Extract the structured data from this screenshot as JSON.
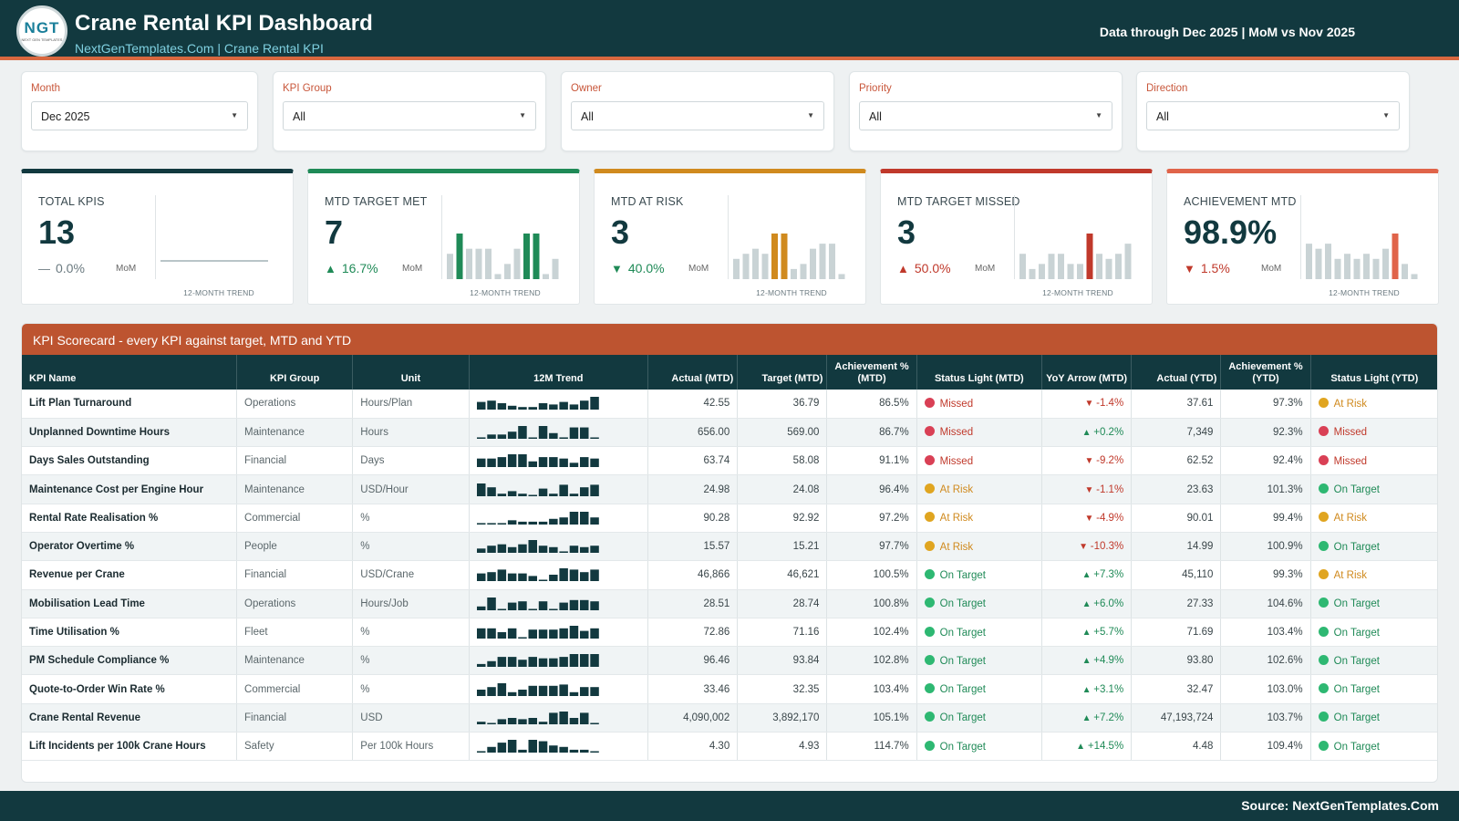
{
  "header": {
    "logo_text": "NGT",
    "logo_subtext": "NEXT GEN TEMPLATES",
    "title": "Crane Rental KPI Dashboard",
    "subtitle": "NextGenTemplates.Com | Crane Rental KPI",
    "period_note": "Data through Dec 2025 | MoM vs Nov 2025"
  },
  "filters": [
    {
      "label": "Month",
      "value": "Dec 2025"
    },
    {
      "label": "KPI Group",
      "value": "All"
    },
    {
      "label": "Owner",
      "value": "All"
    },
    {
      "label": "Priority",
      "value": "All"
    },
    {
      "label": "Direction",
      "value": "All"
    }
  ],
  "kpis": [
    {
      "label": "TOTAL KPIS",
      "value": "13",
      "change": "0.0%",
      "change_dir": "flat",
      "change_color": "#6b7a80",
      "mom": "MoM",
      "accent": "#12393f",
      "highlight": "#12393f",
      "trend_caption": "12-MONTH TREND",
      "trend": [
        13,
        13,
        13,
        13,
        13,
        13,
        13,
        13,
        13,
        13,
        13,
        13
      ],
      "highlight_idx": [],
      "is_line": true
    },
    {
      "label": "MTD TARGET MET",
      "value": "7",
      "change": "16.7%",
      "change_dir": "up",
      "change_color": "#1f8a57",
      "mom": "MoM",
      "accent": "#1f8a57",
      "highlight": "#1f8a57",
      "trend_caption": "12-MONTH TREND",
      "trend": [
        5,
        9,
        6,
        6,
        6,
        1,
        3,
        6,
        9,
        9,
        1,
        4
      ],
      "highlight_idx": [
        1,
        8,
        9
      ]
    },
    {
      "label": "MTD AT RISK",
      "value": "3",
      "change": "40.0%",
      "change_dir": "down",
      "change_color": "#1f8a57",
      "mom": "MoM",
      "accent": "#d08a1e",
      "highlight": "#d08a1e",
      "trend_caption": "12-MONTH TREND",
      "trend": [
        4,
        5,
        6,
        5,
        9,
        9,
        2,
        3,
        6,
        7,
        7,
        1
      ],
      "highlight_idx": [
        4,
        5
      ]
    },
    {
      "label": "MTD TARGET MISSED",
      "value": "3",
      "change": "50.0%",
      "change_dir": "up",
      "change_color": "#c0392b",
      "mom": "MoM",
      "accent": "#c0392b",
      "highlight": "#c0392b",
      "trend_caption": "12-MONTH TREND",
      "trend": [
        5,
        2,
        3,
        5,
        5,
        3,
        3,
        9,
        5,
        4,
        5,
        7
      ],
      "highlight_idx": [
        7
      ]
    },
    {
      "label": "ACHIEVEMENT MTD",
      "value": "98.9%",
      "change": "1.5%",
      "change_dir": "down",
      "change_color": "#c0392b",
      "mom": "MoM",
      "accent": "#e0644a",
      "highlight": "#e0644a",
      "trend_caption": "12-MONTH TREND",
      "trend": [
        7,
        6,
        7,
        4,
        5,
        4,
        5,
        4,
        6,
        9,
        3,
        1
      ],
      "highlight_idx": [
        9
      ]
    }
  ],
  "scorecard": {
    "title": "KPI Scorecard - every KPI against target, MTD and YTD",
    "columns": [
      "KPI Name",
      "KPI Group",
      "Unit",
      "12M Trend",
      "Actual (MTD)",
      "Target (MTD)",
      "Achievement % (MTD)",
      "Status Light (MTD)",
      "YoY Arrow (MTD)",
      "Actual (YTD)",
      "Achievement % (YTD)",
      "Status Light (YTD)"
    ],
    "rows": [
      {
        "name": "Lift Plan Turnaround",
        "group": "Operations",
        "unit": "Hours/Plan",
        "trend": [
          6,
          7,
          5,
          3,
          2,
          2,
          5,
          4,
          6,
          4,
          7,
          10
        ],
        "actual_mtd": "42.55",
        "target_mtd": "36.79",
        "ach_mtd": "86.5%",
        "status_mtd": "Missed",
        "yoy_dir": "down",
        "yoy": "-1.4%",
        "actual_ytd": "37.61",
        "ach_ytd": "97.3%",
        "status_ytd": "At Risk"
      },
      {
        "name": "Unplanned Downtime Hours",
        "group": "Maintenance",
        "unit": "Hours",
        "trend": [
          1,
          3,
          3,
          5,
          9,
          0,
          9,
          4,
          1,
          8,
          8,
          0
        ],
        "actual_mtd": "656.00",
        "target_mtd": "569.00",
        "ach_mtd": "86.7%",
        "status_mtd": "Missed",
        "yoy_dir": "up",
        "yoy": "+0.2%",
        "actual_ytd": "7,349",
        "ach_ytd": "92.3%",
        "status_ytd": "Missed"
      },
      {
        "name": "Days Sales Outstanding",
        "group": "Financial",
        "unit": "Days",
        "trend": [
          6,
          6,
          7,
          9,
          9,
          4,
          7,
          7,
          6,
          3,
          7,
          6
        ],
        "actual_mtd": "63.74",
        "target_mtd": "58.08",
        "ach_mtd": "91.1%",
        "status_mtd": "Missed",
        "yoy_dir": "down",
        "yoy": "-9.2%",
        "actual_ytd": "62.52",
        "ach_ytd": "92.4%",
        "status_ytd": "Missed"
      },
      {
        "name": "Maintenance Cost per Engine Hour",
        "group": "Maintenance",
        "unit": "USD/Hour",
        "trend": [
          10,
          7,
          2,
          4,
          2,
          1,
          6,
          2,
          9,
          2,
          7,
          9
        ],
        "actual_mtd": "24.98",
        "target_mtd": "24.08",
        "ach_mtd": "96.4%",
        "status_mtd": "At Risk",
        "yoy_dir": "down",
        "yoy": "-1.1%",
        "actual_ytd": "23.63",
        "ach_ytd": "101.3%",
        "status_ytd": "On Target"
      },
      {
        "name": "Rental Rate Realisation %",
        "group": "Commercial",
        "unit": "%",
        "trend": [
          1,
          1,
          1,
          3,
          2,
          2,
          2,
          4,
          5,
          9,
          9,
          5
        ],
        "actual_mtd": "90.28",
        "target_mtd": "92.92",
        "ach_mtd": "97.2%",
        "status_mtd": "At Risk",
        "yoy_dir": "down",
        "yoy": "-4.9%",
        "actual_ytd": "90.01",
        "ach_ytd": "99.4%",
        "status_ytd": "At Risk"
      },
      {
        "name": "Operator Overtime %",
        "group": "People",
        "unit": "%",
        "trend": [
          3,
          5,
          6,
          4,
          6,
          9,
          5,
          4,
          1,
          5,
          4,
          5
        ],
        "actual_mtd": "15.57",
        "target_mtd": "15.21",
        "ach_mtd": "97.7%",
        "status_mtd": "At Risk",
        "yoy_dir": "down",
        "yoy": "-10.3%",
        "actual_ytd": "14.99",
        "ach_ytd": "100.9%",
        "status_ytd": "On Target"
      },
      {
        "name": "Revenue per Crane",
        "group": "Financial",
        "unit": "USD/Crane",
        "trend": [
          6,
          7,
          9,
          6,
          6,
          4,
          1,
          5,
          10,
          9,
          7,
          9
        ],
        "actual_mtd": "46,866",
        "target_mtd": "46,621",
        "ach_mtd": "100.5%",
        "status_mtd": "On Target",
        "yoy_dir": "up",
        "yoy": "+7.3%",
        "actual_ytd": "45,110",
        "ach_ytd": "99.3%",
        "status_ytd": "At Risk"
      },
      {
        "name": "Mobilisation Lead Time",
        "group": "Operations",
        "unit": "Hours/Job",
        "trend": [
          3,
          10,
          1,
          6,
          7,
          1,
          7,
          1,
          6,
          8,
          8,
          7
        ],
        "actual_mtd": "28.51",
        "target_mtd": "28.74",
        "ach_mtd": "100.8%",
        "status_mtd": "On Target",
        "yoy_dir": "up",
        "yoy": "+6.0%",
        "actual_ytd": "27.33",
        "ach_ytd": "104.6%",
        "status_ytd": "On Target"
      },
      {
        "name": "Time Utilisation %",
        "group": "Fleet",
        "unit": "%",
        "trend": [
          8,
          8,
          5,
          8,
          1,
          7,
          7,
          7,
          8,
          10,
          6,
          8
        ],
        "actual_mtd": "72.86",
        "target_mtd": "71.16",
        "ach_mtd": "102.4%",
        "status_mtd": "On Target",
        "yoy_dir": "up",
        "yoy": "+5.7%",
        "actual_ytd": "71.69",
        "ach_ytd": "103.4%",
        "status_ytd": "On Target"
      },
      {
        "name": "PM Schedule Compliance %",
        "group": "Maintenance",
        "unit": "%",
        "trend": [
          2,
          4,
          7,
          7,
          5,
          7,
          6,
          6,
          7,
          9,
          9,
          9
        ],
        "actual_mtd": "96.46",
        "target_mtd": "93.84",
        "ach_mtd": "102.8%",
        "status_mtd": "On Target",
        "yoy_dir": "up",
        "yoy": "+4.9%",
        "actual_ytd": "93.80",
        "ach_ytd": "102.6%",
        "status_ytd": "On Target"
      },
      {
        "name": "Quote-to-Order Win Rate %",
        "group": "Commercial",
        "unit": "%",
        "trend": [
          5,
          7,
          10,
          3,
          5,
          8,
          8,
          8,
          9,
          3,
          7,
          7
        ],
        "actual_mtd": "33.46",
        "target_mtd": "32.35",
        "ach_mtd": "103.4%",
        "status_mtd": "On Target",
        "yoy_dir": "up",
        "yoy": "+3.1%",
        "actual_ytd": "32.47",
        "ach_ytd": "103.0%",
        "status_ytd": "On Target"
      },
      {
        "name": "Crane Rental Revenue",
        "group": "Financial",
        "unit": "USD",
        "trend": [
          2,
          1,
          4,
          5,
          4,
          5,
          2,
          9,
          10,
          5,
          9,
          0
        ],
        "actual_mtd": "4,090,002",
        "target_mtd": "3,892,170",
        "ach_mtd": "105.1%",
        "status_mtd": "On Target",
        "yoy_dir": "up",
        "yoy": "+7.2%",
        "actual_ytd": "47,193,724",
        "ach_ytd": "103.7%",
        "status_ytd": "On Target"
      },
      {
        "name": "Lift Incidents per 100k Crane Hours",
        "group": "Safety",
        "unit": "Per 100k Hours",
        "trend": [
          1,
          4,
          7,
          9,
          2,
          9,
          8,
          5,
          4,
          2,
          2,
          0
        ],
        "actual_mtd": "4.30",
        "target_mtd": "4.93",
        "ach_mtd": "114.7%",
        "status_mtd": "On Target",
        "yoy_dir": "up",
        "yoy": "+14.5%",
        "actual_ytd": "4.48",
        "ach_ytd": "109.4%",
        "status_ytd": "On Target"
      }
    ]
  },
  "colors": {
    "header_bg": "#12393f",
    "accent_orange": "#bd5430",
    "missed": "#d94055",
    "at_risk": "#e0a520",
    "on_target": "#2eb872",
    "missed_text": "#c0392b",
    "at_risk_text": "#d08a1e",
    "on_target_text": "#1f8a57",
    "trend_bar": "#12393f",
    "spark_bar": "#c9d3d5"
  },
  "footer": {
    "source": "Source: NextGenTemplates.Com"
  }
}
